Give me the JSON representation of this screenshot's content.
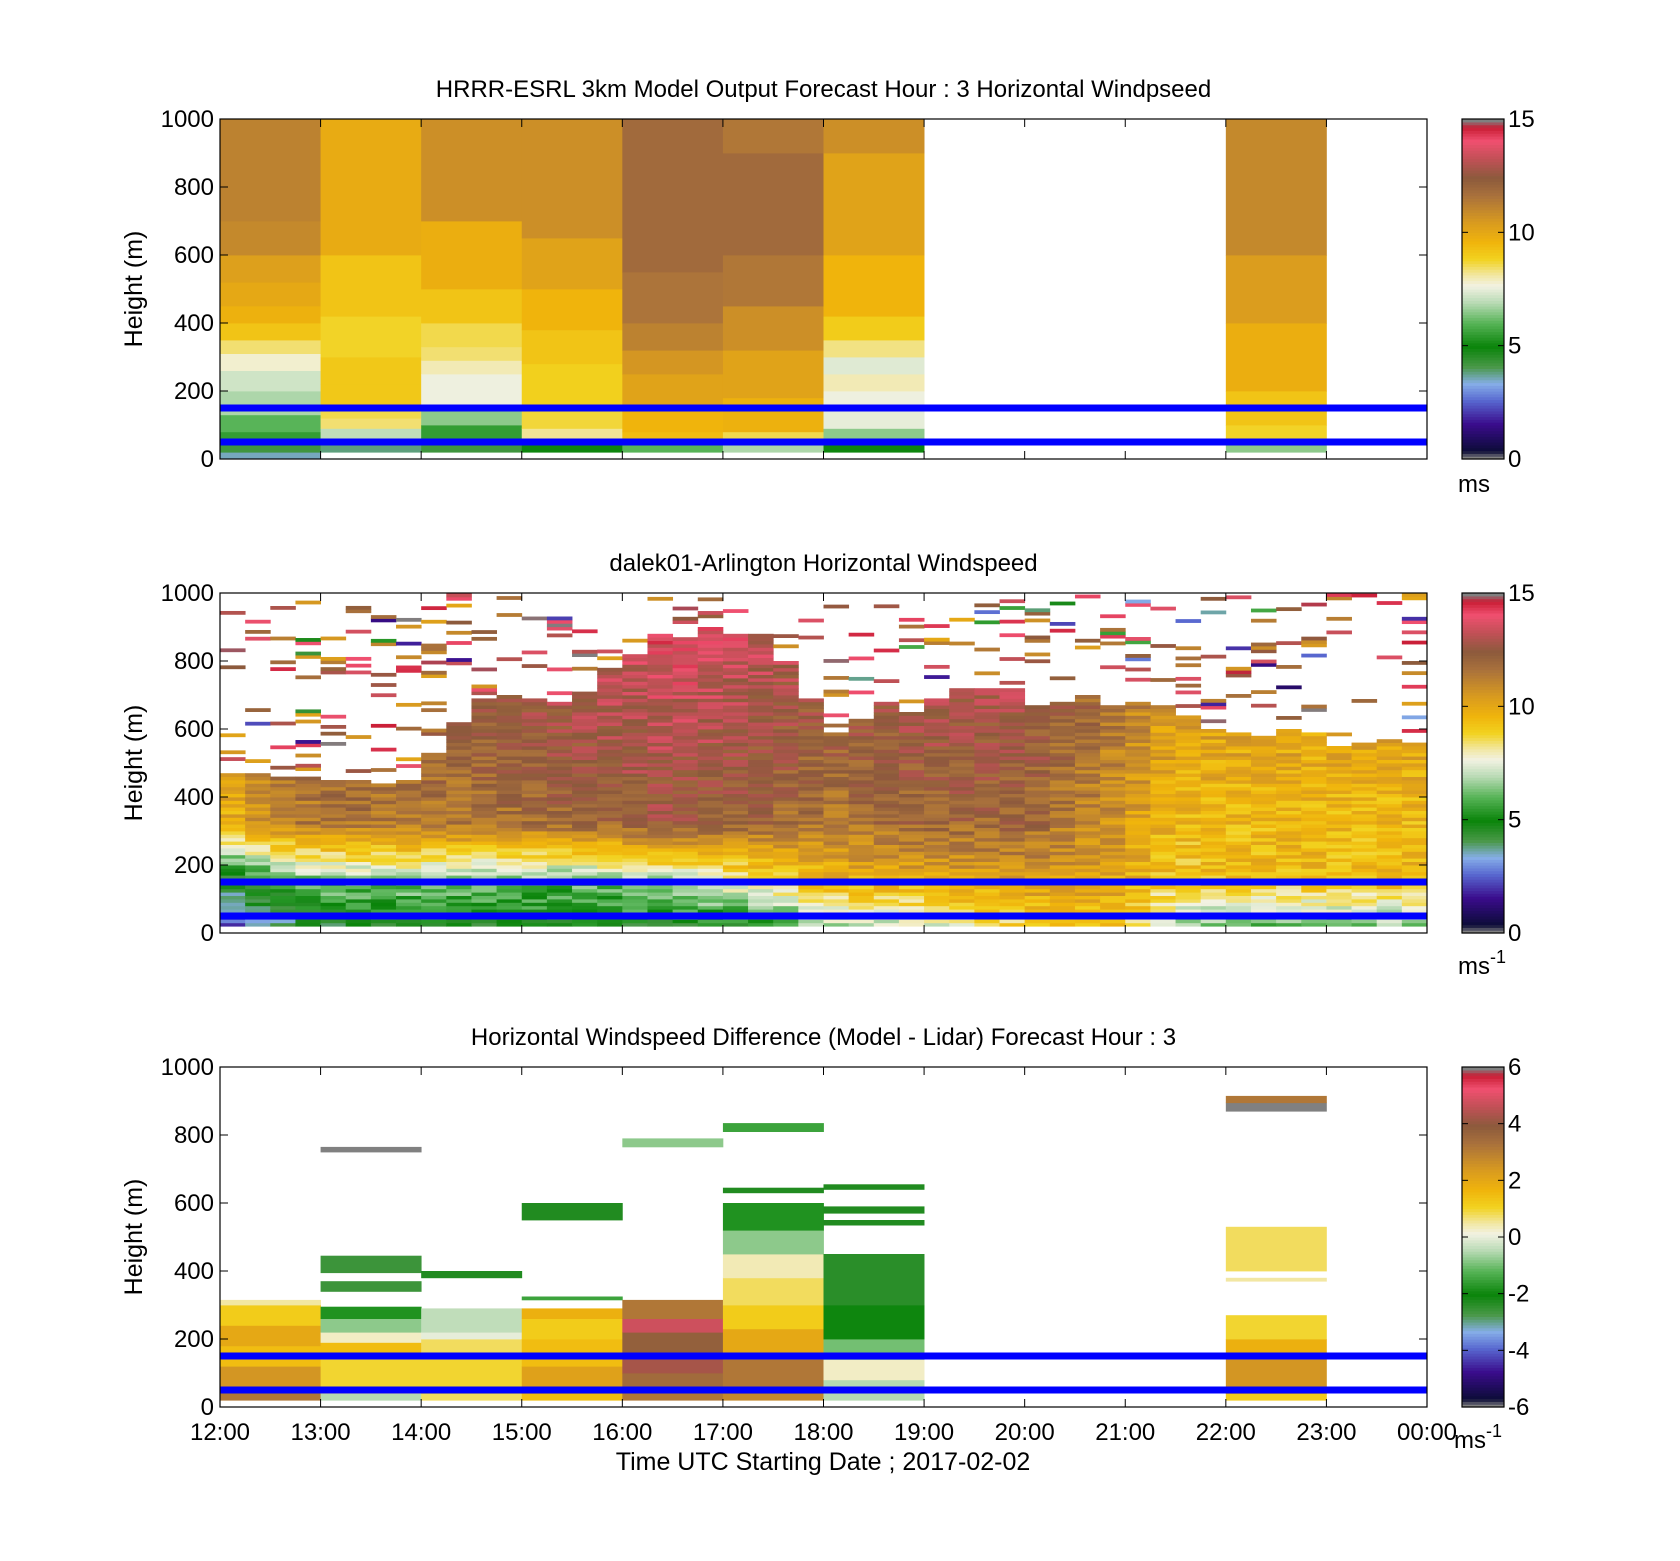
{
  "figure": {
    "xlabel": "Time UTC  Starting Date ; 2017-02-02",
    "x_tick_labels": [
      "12:00",
      "13:00",
      "14:00",
      "15:00",
      "16:00",
      "17:00",
      "18:00",
      "19:00",
      "20:00",
      "21:00",
      "22:00",
      "23:00",
      "00:00"
    ],
    "reference_line_color": "#0000ff",
    "reference_heights_m": [
      50,
      150
    ]
  },
  "chart_data": [
    {
      "type": "heatmap",
      "title": "HRRR-ESRL 3km Model Output   Forecast Hour : 3 Horizontal Windpseed",
      "xlabel": "",
      "ylabel": "Height (m)",
      "ylim": [
        0,
        1000
      ],
      "y_ticks": [
        0,
        200,
        400,
        600,
        800,
        1000
      ],
      "colorbar": {
        "range": [
          0,
          15
        ],
        "ticks": [
          0,
          5,
          10,
          15
        ],
        "unit": "ms"
      },
      "x_hours": [
        12,
        13,
        14,
        15,
        16,
        17,
        18,
        22
      ],
      "column_width_hours": 1,
      "columns": [
        {
          "hour": 12,
          "segments": [
            [
              0,
              20,
              3.5
            ],
            [
              20,
              40,
              4.2
            ],
            [
              40,
              80,
              5.5
            ],
            [
              80,
              130,
              6.0
            ],
            [
              130,
              200,
              6.8
            ],
            [
              200,
              260,
              7.2
            ],
            [
              260,
              310,
              7.8
            ],
            [
              310,
              350,
              8.4
            ],
            [
              350,
              400,
              9.2
            ],
            [
              400,
              450,
              9.7
            ],
            [
              450,
              520,
              10.0
            ],
            [
              520,
              600,
              10.3
            ],
            [
              600,
              700,
              11.0
            ],
            [
              700,
              1000,
              11.2
            ]
          ]
        },
        {
          "hour": 13,
          "segments": [
            [
              20,
              60,
              3.8
            ],
            [
              60,
              90,
              7.0
            ],
            [
              90,
              120,
              8.4
            ],
            [
              120,
              160,
              8.6
            ],
            [
              160,
              220,
              9.1
            ],
            [
              220,
              300,
              9.1
            ],
            [
              300,
              420,
              8.8
            ],
            [
              420,
              600,
              9.2
            ],
            [
              600,
              1000,
              9.9
            ]
          ]
        },
        {
          "hour": 14,
          "segments": [
            [
              20,
              50,
              4.2
            ],
            [
              50,
              100,
              5.5
            ],
            [
              100,
              150,
              6.5
            ],
            [
              150,
              250,
              7.6
            ],
            [
              250,
              290,
              8.0
            ],
            [
              290,
              330,
              8.4
            ],
            [
              330,
              400,
              8.6
            ],
            [
              400,
              500,
              9.2
            ],
            [
              500,
              700,
              9.8
            ],
            [
              700,
              1000,
              10.8
            ]
          ]
        },
        {
          "hour": 15,
          "segments": [
            [
              20,
              50,
              5.0
            ],
            [
              50,
              90,
              8.2
            ],
            [
              90,
              150,
              8.7
            ],
            [
              150,
              280,
              8.9
            ],
            [
              280,
              380,
              9.2
            ],
            [
              380,
              500,
              9.6
            ],
            [
              500,
              650,
              10.2
            ],
            [
              650,
              1000,
              10.8
            ]
          ]
        },
        {
          "hour": 16,
          "segments": [
            [
              20,
              50,
              6.0
            ],
            [
              50,
              80,
              9.4
            ],
            [
              80,
              150,
              9.6
            ],
            [
              150,
              250,
              10.2
            ],
            [
              250,
              320,
              10.6
            ],
            [
              320,
              400,
              11.2
            ],
            [
              400,
              550,
              11.6
            ],
            [
              550,
              1000,
              11.9
            ]
          ]
        },
        {
          "hour": 17,
          "segments": [
            [
              20,
              50,
              6.8
            ],
            [
              50,
              80,
              8.6
            ],
            [
              80,
              180,
              9.7
            ],
            [
              180,
              320,
              10.2
            ],
            [
              320,
              450,
              10.8
            ],
            [
              450,
              600,
              11.5
            ],
            [
              600,
              900,
              11.9
            ],
            [
              900,
              1000,
              11.5
            ]
          ]
        },
        {
          "hour": 18,
          "segments": [
            [
              20,
              50,
              5.0
            ],
            [
              50,
              90,
              6.5
            ],
            [
              90,
              150,
              7.5
            ],
            [
              150,
              200,
              7.6
            ],
            [
              200,
              250,
              8.0
            ],
            [
              250,
              300,
              7.4
            ],
            [
              300,
              350,
              8.3
            ],
            [
              350,
              420,
              9.0
            ],
            [
              420,
              600,
              9.6
            ],
            [
              600,
              900,
              10.2
            ],
            [
              900,
              1000,
              10.8
            ]
          ]
        },
        {
          "hour": 22,
          "segments": [
            [
              20,
              50,
              6.5
            ],
            [
              50,
              100,
              8.8
            ],
            [
              100,
              200,
              9.2
            ],
            [
              200,
              400,
              9.8
            ],
            [
              400,
              600,
              10.4
            ],
            [
              600,
              1000,
              11.0
            ]
          ]
        }
      ]
    },
    {
      "type": "heatmap",
      "title": "dalek01-Arlington  Horizontal Windspeed",
      "xlabel": "",
      "ylabel": "Height (m)",
      "ylim": [
        0,
        1000
      ],
      "y_ticks": [
        0,
        200,
        400,
        600,
        800,
        1000
      ],
      "colorbar": {
        "range": [
          0,
          15
        ],
        "ticks": [
          0,
          5,
          10,
          15
        ],
        "unit": "ms",
        "unit_superscript": "-1"
      },
      "time_step_hours": 0.25,
      "profile_nodes": [
        {
          "hour": 12.0,
          "low": 1.5,
          "mid": 4.0,
          "upper": 9.5,
          "top_m": 480
        },
        {
          "hour": 12.5,
          "low": 3.5,
          "mid": 5.5,
          "upper": 11.0,
          "top_m": 470
        },
        {
          "hour": 13.0,
          "low": 4.0,
          "mid": 6.5,
          "upper": 11.5,
          "top_m": 470
        },
        {
          "hour": 14.0,
          "low": 4.5,
          "mid": 6.5,
          "upper": 11.5,
          "top_m": 450
        },
        {
          "hour": 14.5,
          "low": 4.5,
          "mid": 6.5,
          "upper": 11.5,
          "top_m": 650
        },
        {
          "hour": 15.5,
          "low": 4.5,
          "mid": 6.0,
          "upper": 12.0,
          "top_m": 700
        },
        {
          "hour": 16.5,
          "low": 4.5,
          "mid": 7.0,
          "upper": 12.5,
          "top_m": 900
        },
        {
          "hour": 17.5,
          "low": 4.5,
          "mid": 8.5,
          "upper": 12.0,
          "top_m": 850
        },
        {
          "hour": 18.0,
          "low": 6.5,
          "mid": 9.5,
          "upper": 11.5,
          "top_m": 600
        },
        {
          "hour": 19.0,
          "low": 7.0,
          "mid": 10.0,
          "upper": 12.0,
          "top_m": 680
        },
        {
          "hour": 20.0,
          "low": 8.5,
          "mid": 10.5,
          "upper": 12.0,
          "top_m": 700
        },
        {
          "hour": 21.0,
          "low": 9.5,
          "mid": 10.0,
          "upper": 10.5,
          "top_m": 650
        },
        {
          "hour": 21.5,
          "low": 6.0,
          "mid": 9.0,
          "upper": 9.5,
          "top_m": 650
        },
        {
          "hour": 22.0,
          "low": 5.5,
          "mid": 9.5,
          "upper": 9.5,
          "top_m": 600
        },
        {
          "hour": 23.0,
          "low": 5.5,
          "mid": 9.5,
          "upper": 9.5,
          "top_m": 580
        },
        {
          "hour": 23.75,
          "low": 6.0,
          "mid": 9.5,
          "upper": 9.5,
          "top_m": 560
        }
      ],
      "notes_scattered_returns": "Sparse speckled returns above the continuous profile (roughly 500-1000 m), mostly 10-15 m/s, with a few low-speed returns near 600 m and 900-990 m."
    },
    {
      "type": "heatmap",
      "title": "Horizontal Windspeed Difference (Model - Lidar) Forecast Hour : 3",
      "xlabel": "Time UTC  Starting Date ; 2017-02-02",
      "ylabel": "Height (m)",
      "ylim": [
        0,
        1000
      ],
      "y_ticks": [
        0,
        200,
        400,
        600,
        800,
        1000
      ],
      "colorbar": {
        "range": [
          -6,
          6
        ],
        "ticks": [
          -6,
          -4,
          -2,
          0,
          2,
          4,
          6
        ],
        "unit": "ms",
        "unit_superscript": "-1"
      },
      "x_hours": [
        12,
        13,
        14,
        15,
        16,
        17,
        18,
        22
      ],
      "column_width_hours": 1,
      "columns": [
        {
          "hour": 12,
          "segments": [
            [
              20,
              60,
              3.2
            ],
            [
              60,
              120,
              2.5
            ],
            [
              120,
              180,
              1.5
            ],
            [
              180,
              240,
              2.0
            ],
            [
              240,
              300,
              1.2
            ],
            [
              300,
              315,
              0.5
            ]
          ]
        },
        {
          "hour": 13,
          "segments": [
            [
              20,
              40,
              -0.5
            ],
            [
              40,
              60,
              0.6
            ],
            [
              60,
              150,
              1.0
            ],
            [
              150,
              190,
              1.5
            ],
            [
              190,
              220,
              0.3
            ],
            [
              220,
              260,
              -0.8
            ],
            [
              260,
              295,
              -1.8
            ],
            [
              340,
              370,
              -2.6
            ],
            [
              395,
              445,
              -2.6
            ],
            [
              750,
              765,
              -6.5
            ]
          ]
        },
        {
          "hour": 14,
          "segments": [
            [
              20,
              40,
              0.8
            ],
            [
              40,
              150,
              1.0
            ],
            [
              150,
              200,
              0.8
            ],
            [
              200,
              220,
              0.0
            ],
            [
              220,
              290,
              -0.4
            ],
            [
              380,
              400,
              -2.3
            ]
          ]
        },
        {
          "hour": 15,
          "segments": [
            [
              20,
              40,
              1.5
            ],
            [
              40,
              120,
              2.2
            ],
            [
              120,
              200,
              1.5
            ],
            [
              200,
              260,
              1.2
            ],
            [
              260,
              290,
              1.8
            ],
            [
              315,
              325,
              -1.5
            ],
            [
              550,
              600,
              -2.3
            ]
          ]
        },
        {
          "hour": 16,
          "segments": [
            [
              20,
              50,
              3.2
            ],
            [
              50,
              100,
              3.5
            ],
            [
              100,
              150,
              4.3
            ],
            [
              150,
              220,
              3.8
            ],
            [
              220,
              260,
              4.8
            ],
            [
              260,
              315,
              3.2
            ],
            [
              765,
              790,
              -0.8
            ]
          ]
        },
        {
          "hour": 17,
          "segments": [
            [
              20,
              40,
              2.8
            ],
            [
              40,
              150,
              3.2
            ],
            [
              150,
              230,
              2.0
            ],
            [
              230,
              300,
              1.2
            ],
            [
              300,
              380,
              0.8
            ],
            [
              380,
              450,
              0.4
            ],
            [
              450,
              520,
              -0.8
            ],
            [
              520,
              600,
              -1.8
            ],
            [
              630,
              645,
              -2.3
            ],
            [
              810,
              835,
              -1.5
            ]
          ]
        },
        {
          "hour": 18,
          "segments": [
            [
              20,
              80,
              -0.5
            ],
            [
              80,
              140,
              0.3
            ],
            [
              140,
              200,
              -1.0
            ],
            [
              200,
              300,
              -2.0
            ],
            [
              300,
              450,
              -2.4
            ],
            [
              535,
              550,
              -2.3
            ],
            [
              570,
              590,
              -2.3
            ],
            [
              640,
              655,
              -2.3
            ]
          ]
        },
        {
          "hour": 22,
          "segments": [
            [
              20,
              40,
              1.2
            ],
            [
              40,
              150,
              2.5
            ],
            [
              150,
              200,
              1.8
            ],
            [
              200,
              270,
              1.0
            ],
            [
              370,
              380,
              0.5
            ],
            [
              400,
              530,
              0.8
            ],
            [
              870,
              895,
              -6.5
            ],
            [
              895,
              915,
              3.2
            ]
          ]
        }
      ]
    }
  ]
}
